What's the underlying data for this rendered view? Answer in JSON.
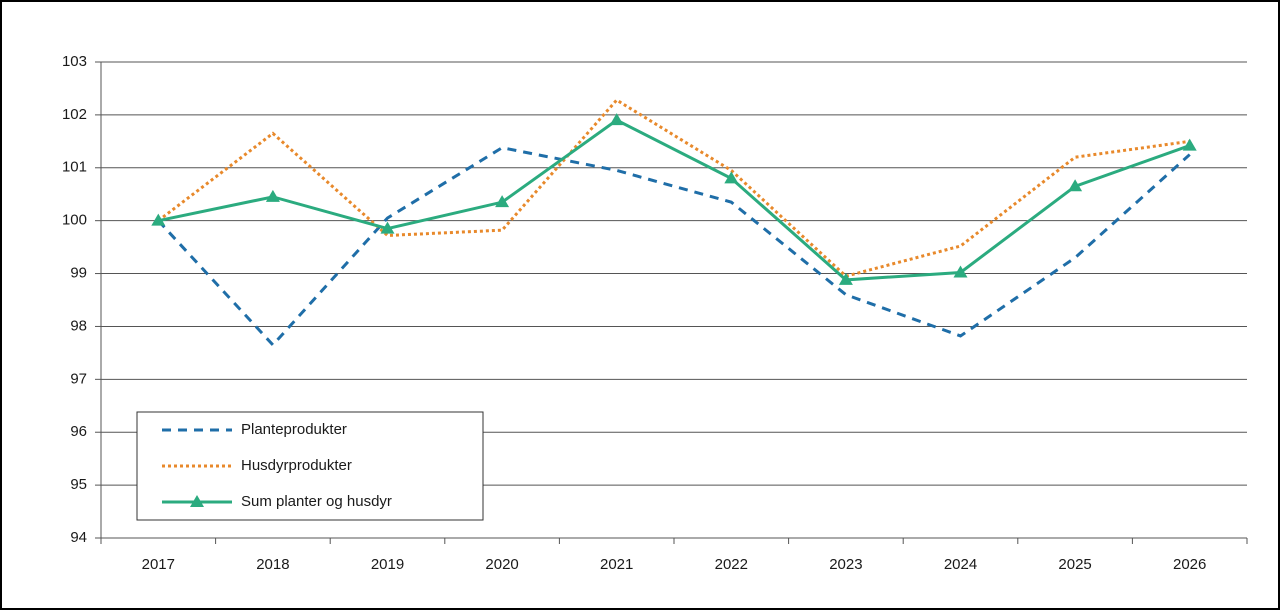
{
  "chart_data": {
    "type": "line",
    "categories": [
      "2017",
      "2018",
      "2019",
      "2020",
      "2021",
      "2022",
      "2023",
      "2024",
      "2025",
      "2026"
    ],
    "series": [
      {
        "name": "Planteprodukter",
        "color": "#1f6ea8",
        "style": "dashed",
        "values": [
          100,
          97.65,
          100.05,
          101.38,
          100.95,
          100.35,
          98.6,
          97.82,
          99.3,
          101.25
        ]
      },
      {
        "name": "Husdyrprodukter",
        "color": "#e8892b",
        "style": "dotted",
        "values": [
          100,
          101.65,
          99.72,
          99.82,
          102.28,
          100.95,
          98.95,
          99.52,
          101.2,
          101.5
        ]
      },
      {
        "name": "Sum planter og husdyr",
        "color": "#2bab7f",
        "style": "solid",
        "marker": "triangle",
        "values": [
          100,
          100.45,
          99.85,
          100.35,
          101.9,
          100.8,
          98.88,
          99.02,
          100.65,
          101.42
        ]
      }
    ],
    "ylim": [
      94,
      103
    ],
    "yticks": [
      94,
      95,
      96,
      97,
      98,
      99,
      100,
      101,
      102,
      103
    ],
    "grid": true,
    "legend": "lower left"
  }
}
